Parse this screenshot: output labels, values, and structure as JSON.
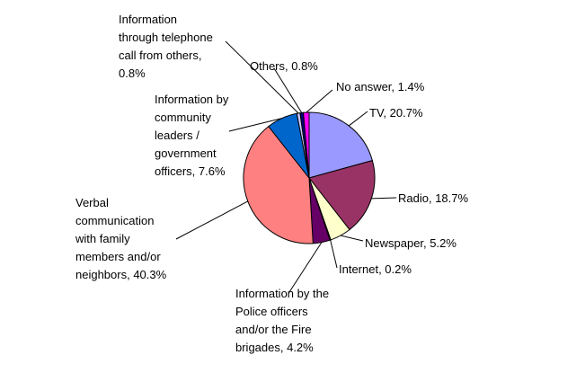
{
  "chart_data": {
    "type": "pie",
    "title": "",
    "start_angle_deg": 90,
    "direction": "clockwise",
    "slices": [
      {
        "label": [
          "TV, 20.7%"
        ],
        "value": 20.7,
        "color": "#9999ff"
      },
      {
        "label": [
          "Radio, 18.7%"
        ],
        "value": 18.7,
        "color": "#993366"
      },
      {
        "label": [
          "Newspaper, 5.2%"
        ],
        "value": 5.2,
        "color": "#ffffcc"
      },
      {
        "label": [
          "Internet, 0.2%"
        ],
        "value": 0.2,
        "color": "#ccffff"
      },
      {
        "label": [
          "Information by the",
          "Police officers",
          "and/or the Fire",
          "brigades, 4.2%"
        ],
        "value": 4.2,
        "color": "#660066"
      },
      {
        "label": [
          "Verbal",
          "communication",
          "with family",
          "members and/or",
          "neighbors, 40.3%"
        ],
        "value": 40.3,
        "color": "#ff8080"
      },
      {
        "label": [
          "Information by",
          "community",
          "leaders /",
          "government",
          "officers, 7.6%"
        ],
        "value": 7.6,
        "color": "#0066cc"
      },
      {
        "label": [
          "Information",
          "through telephone",
          "call from others,",
          "0.8%"
        ],
        "value": 0.8,
        "color": "#ccccff"
      },
      {
        "label": [
          "Others, 0.8%"
        ],
        "value": 0.8,
        "color": "#000080"
      },
      {
        "label": [
          "No answer, 1.4%"
        ],
        "value": 1.4,
        "color": "#ff00ff"
      }
    ]
  }
}
